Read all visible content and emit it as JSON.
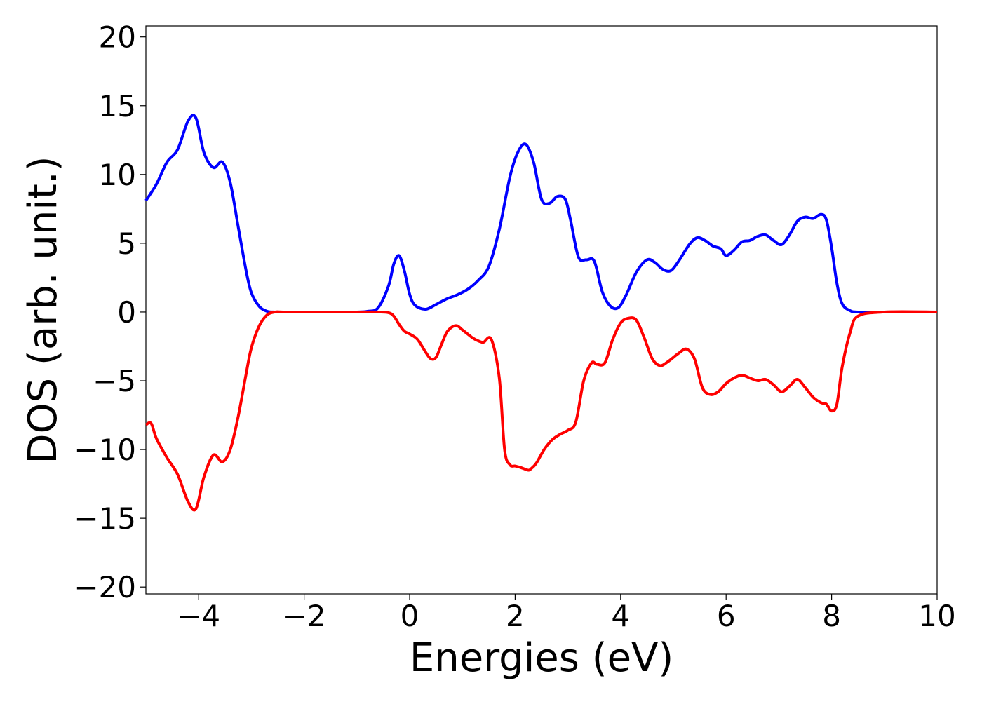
{
  "chart_data": {
    "type": "line",
    "title": "",
    "xlabel": "Energies (eV)",
    "ylabel": "DOS (arb. unit.)",
    "xlim": [
      -5,
      10
    ],
    "ylim": [
      -20.5,
      20.8
    ],
    "xticks": [
      -4,
      -2,
      0,
      2,
      4,
      6,
      8,
      10
    ],
    "xtick_labels": [
      "−4",
      "−2",
      "0",
      "2",
      "4",
      "6",
      "8",
      "10"
    ],
    "yticks": [
      20,
      15,
      10,
      5,
      0,
      -5,
      -10,
      -15,
      -20
    ],
    "ytick_labels": [
      "20",
      "15",
      "10",
      "5",
      "0",
      "−5",
      "−10",
      "−15",
      "−20"
    ],
    "grid": false,
    "legend": false,
    "series": [
      {
        "color": "#0000ff",
        "x": [
          -5.0,
          -4.8,
          -4.6,
          -4.4,
          -4.2,
          -4.05,
          -3.9,
          -3.72,
          -3.55,
          -3.4,
          -3.25,
          -3.1,
          -3.0,
          -2.85,
          -2.7,
          -2.55,
          -2.4,
          -2.0,
          -1.5,
          -1.0,
          -0.8,
          -0.6,
          -0.4,
          -0.3,
          -0.2,
          -0.1,
          0.0,
          0.1,
          0.3,
          0.5,
          0.7,
          0.9,
          1.1,
          1.3,
          1.5,
          1.7,
          1.9,
          2.05,
          2.2,
          2.35,
          2.5,
          2.65,
          2.8,
          2.95,
          3.05,
          3.2,
          3.35,
          3.5,
          3.65,
          3.8,
          3.95,
          4.1,
          4.3,
          4.5,
          4.65,
          4.8,
          4.95,
          5.1,
          5.3,
          5.45,
          5.6,
          5.75,
          5.9,
          6.0,
          6.15,
          6.3,
          6.45,
          6.6,
          6.75,
          6.9,
          7.05,
          7.2,
          7.35,
          7.5,
          7.65,
          7.8,
          7.9,
          8.0,
          8.1,
          8.2,
          8.35,
          8.5,
          9.0,
          10.0
        ],
        "y": [
          8.1,
          9.3,
          10.9,
          11.8,
          13.9,
          14.1,
          11.6,
          10.5,
          10.9,
          9.4,
          6.2,
          3.0,
          1.4,
          0.4,
          0.05,
          0.0,
          0.0,
          0.0,
          0.0,
          0.0,
          0.05,
          0.3,
          1.9,
          3.5,
          4.1,
          3.0,
          1.3,
          0.5,
          0.2,
          0.55,
          0.95,
          1.25,
          1.65,
          2.3,
          3.3,
          6.0,
          9.8,
          11.6,
          12.2,
          10.9,
          8.2,
          7.9,
          8.4,
          8.2,
          6.7,
          4.0,
          3.8,
          3.7,
          1.5,
          0.45,
          0.3,
          1.2,
          2.9,
          3.8,
          3.6,
          3.1,
          3.0,
          3.7,
          4.9,
          5.4,
          5.2,
          4.8,
          4.6,
          4.1,
          4.5,
          5.1,
          5.2,
          5.5,
          5.6,
          5.2,
          4.9,
          5.6,
          6.6,
          6.9,
          6.8,
          7.1,
          6.7,
          4.7,
          2.1,
          0.6,
          0.1,
          0.0,
          0.0,
          0.0
        ]
      },
      {
        "color": "#ff0000",
        "x": [
          -5.0,
          -4.9,
          -4.8,
          -4.6,
          -4.4,
          -4.2,
          -4.05,
          -3.9,
          -3.72,
          -3.55,
          -3.4,
          -3.25,
          -3.1,
          -3.0,
          -2.85,
          -2.7,
          -2.55,
          -2.4,
          -2.0,
          -1.0,
          -0.6,
          -0.4,
          -0.3,
          -0.2,
          -0.1,
          0.0,
          0.15,
          0.3,
          0.4,
          0.5,
          0.6,
          0.7,
          0.8,
          0.9,
          1.0,
          1.1,
          1.2,
          1.3,
          1.4,
          1.55,
          1.7,
          1.8,
          1.9,
          2.0,
          2.1,
          2.25,
          2.3,
          2.4,
          2.55,
          2.7,
          2.85,
          3.0,
          3.15,
          3.3,
          3.45,
          3.55,
          3.7,
          3.85,
          4.0,
          4.15,
          4.3,
          4.45,
          4.6,
          4.75,
          4.9,
          5.1,
          5.25,
          5.4,
          5.55,
          5.7,
          5.85,
          6.0,
          6.15,
          6.3,
          6.45,
          6.6,
          6.75,
          6.9,
          7.05,
          7.2,
          7.35,
          7.5,
          7.65,
          7.8,
          7.9,
          8.0,
          8.1,
          8.2,
          8.35,
          8.5,
          9.0,
          10.0
        ],
        "y": [
          -8.2,
          -8.1,
          -9.2,
          -10.6,
          -11.8,
          -13.8,
          -14.3,
          -12.0,
          -10.4,
          -10.9,
          -10.0,
          -7.6,
          -4.5,
          -2.6,
          -1.0,
          -0.2,
          0.0,
          0.0,
          0.0,
          0.0,
          0.0,
          -0.05,
          -0.3,
          -0.9,
          -1.4,
          -1.6,
          -2.0,
          -2.9,
          -3.4,
          -3.3,
          -2.4,
          -1.5,
          -1.1,
          -1.0,
          -1.3,
          -1.6,
          -1.9,
          -2.1,
          -2.2,
          -2.0,
          -4.8,
          -10.0,
          -11.1,
          -11.2,
          -11.3,
          -11.5,
          -11.4,
          -11.0,
          -10.0,
          -9.3,
          -8.9,
          -8.6,
          -8.0,
          -5.0,
          -3.7,
          -3.8,
          -3.7,
          -2.0,
          -0.8,
          -0.45,
          -0.6,
          -1.9,
          -3.4,
          -3.9,
          -3.6,
          -3.0,
          -2.7,
          -3.4,
          -5.5,
          -6.0,
          -5.8,
          -5.2,
          -4.8,
          -4.6,
          -4.8,
          -5.0,
          -4.9,
          -5.3,
          -5.8,
          -5.4,
          -4.9,
          -5.5,
          -6.2,
          -6.6,
          -6.7,
          -7.2,
          -6.7,
          -4.0,
          -1.5,
          -0.3,
          0.0,
          0.0
        ]
      }
    ]
  }
}
